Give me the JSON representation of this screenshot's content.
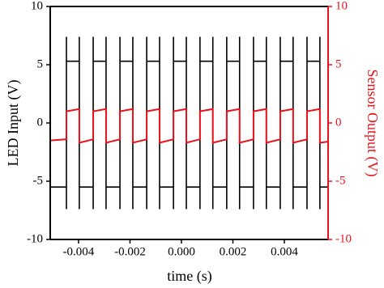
{
  "chart_data": {
    "type": "line",
    "xlabel": "time (s)",
    "ylabel": "LED Input (V)",
    "y2label": "Sensor Output (V)",
    "xlim": [
      -0.0051,
      0.0057
    ],
    "ylim": [
      -10,
      10
    ],
    "y2lim": [
      -10,
      10
    ],
    "xticks": [
      -0.004,
      -0.002,
      {
        "value": 0,
        "label": "0.000"
      },
      0.002,
      0.004
    ],
    "yticks": [
      10,
      5,
      0,
      -5,
      -10
    ],
    "y2ticks": [
      10,
      5,
      0,
      -5,
      -10
    ],
    "y2color": "#e8141c",
    "series": [
      {
        "color": "#000000",
        "x": [
          -0.0051,
          -0.00447,
          -0.00447,
          -0.00447,
          -0.00447,
          -0.00397,
          -0.00397,
          -0.00397,
          -0.00397,
          -0.00343,
          -0.00343,
          -0.00343,
          -0.00343,
          -0.00293,
          -0.00293,
          -0.00293,
          -0.00293,
          -0.00239,
          -0.00239,
          -0.00239,
          -0.00239,
          -0.00189,
          -0.00189,
          -0.00189,
          -0.00189,
          -0.00135,
          -0.00135,
          -0.00135,
          -0.00135,
          -0.00085,
          -0.00085,
          -0.00085,
          -0.00085,
          -0.00031,
          -0.00031,
          -0.00031,
          -0.00031,
          0.00019,
          0.00019,
          0.00019,
          0.00019,
          0.00072,
          0.00072,
          0.00072,
          0.00072,
          0.00122,
          0.00122,
          0.00122,
          0.00122,
          0.00176,
          0.00176,
          0.00176,
          0.00176,
          0.00226,
          0.00226,
          0.00226,
          0.00226,
          0.0028,
          0.0028,
          0.0028,
          0.0028,
          0.0033,
          0.0033,
          0.0033,
          0.0033,
          0.00384,
          0.00384,
          0.00384,
          0.00384,
          0.00434,
          0.00434,
          0.00434,
          0.00434,
          0.00488,
          0.00488,
          0.00488,
          0.00488,
          0.00538,
          0.00538,
          0.00538,
          0.00538,
          0.0057
        ],
        "values": [
          -5.5,
          -5.5,
          -7.4,
          7.4,
          5.3,
          5.3,
          7.4,
          -7.4,
          -5.5,
          -5.5,
          -7.4,
          7.4,
          5.3,
          5.3,
          7.4,
          -7.4,
          -5.5,
          -5.5,
          -7.4,
          7.4,
          5.3,
          5.3,
          7.4,
          -7.4,
          -5.5,
          -5.5,
          -7.4,
          7.4,
          5.3,
          5.3,
          7.4,
          -7.4,
          -5.5,
          -5.5,
          -7.4,
          7.4,
          5.3,
          5.3,
          7.4,
          -7.4,
          -5.5,
          -5.5,
          -7.4,
          7.4,
          5.3,
          5.3,
          7.4,
          -7.4,
          -5.5,
          -5.5,
          -7.4,
          7.4,
          5.3,
          5.3,
          7.4,
          -7.4,
          -5.5,
          -5.5,
          -7.4,
          7.4,
          5.3,
          5.3,
          7.4,
          -7.4,
          -5.5,
          -5.5,
          -7.4,
          7.4,
          5.3,
          5.3,
          7.4,
          -7.4,
          -5.5,
          -5.5,
          -7.4,
          7.4,
          5.3,
          5.3,
          7.4,
          -7.4,
          -5.5,
          -5.5
        ]
      },
      {
        "color": "#e8141c",
        "axis": "y2",
        "x": [
          -0.0051,
          -0.00447,
          -0.00447,
          -0.00397,
          -0.00397,
          -0.00343,
          -0.00343,
          -0.00293,
          -0.00293,
          -0.00239,
          -0.00239,
          -0.00189,
          -0.00189,
          -0.00135,
          -0.00135,
          -0.00085,
          -0.00085,
          -0.00031,
          -0.00031,
          0.00019,
          0.00019,
          0.00072,
          0.00072,
          0.00122,
          0.00122,
          0.00176,
          0.00176,
          0.00226,
          0.00226,
          0.0028,
          0.0028,
          0.0033,
          0.0033,
          0.00384,
          0.00384,
          0.00434,
          0.00434,
          0.00488,
          0.00488,
          0.00538,
          0.00538,
          0.0057
        ],
        "values": [
          -1.5,
          -1.4,
          1.0,
          1.2,
          -1.7,
          -1.4,
          1.0,
          1.2,
          -1.7,
          -1.4,
          1.0,
          1.2,
          -1.7,
          -1.4,
          1.0,
          1.2,
          -1.7,
          -1.4,
          1.0,
          1.2,
          -1.7,
          -1.4,
          1.0,
          1.2,
          -1.7,
          -1.4,
          1.0,
          1.2,
          -1.7,
          -1.4,
          1.0,
          1.2,
          -1.7,
          -1.4,
          1.0,
          1.2,
          -1.7,
          -1.4,
          1.0,
          1.2,
          -1.7,
          -1.6
        ]
      }
    ]
  }
}
